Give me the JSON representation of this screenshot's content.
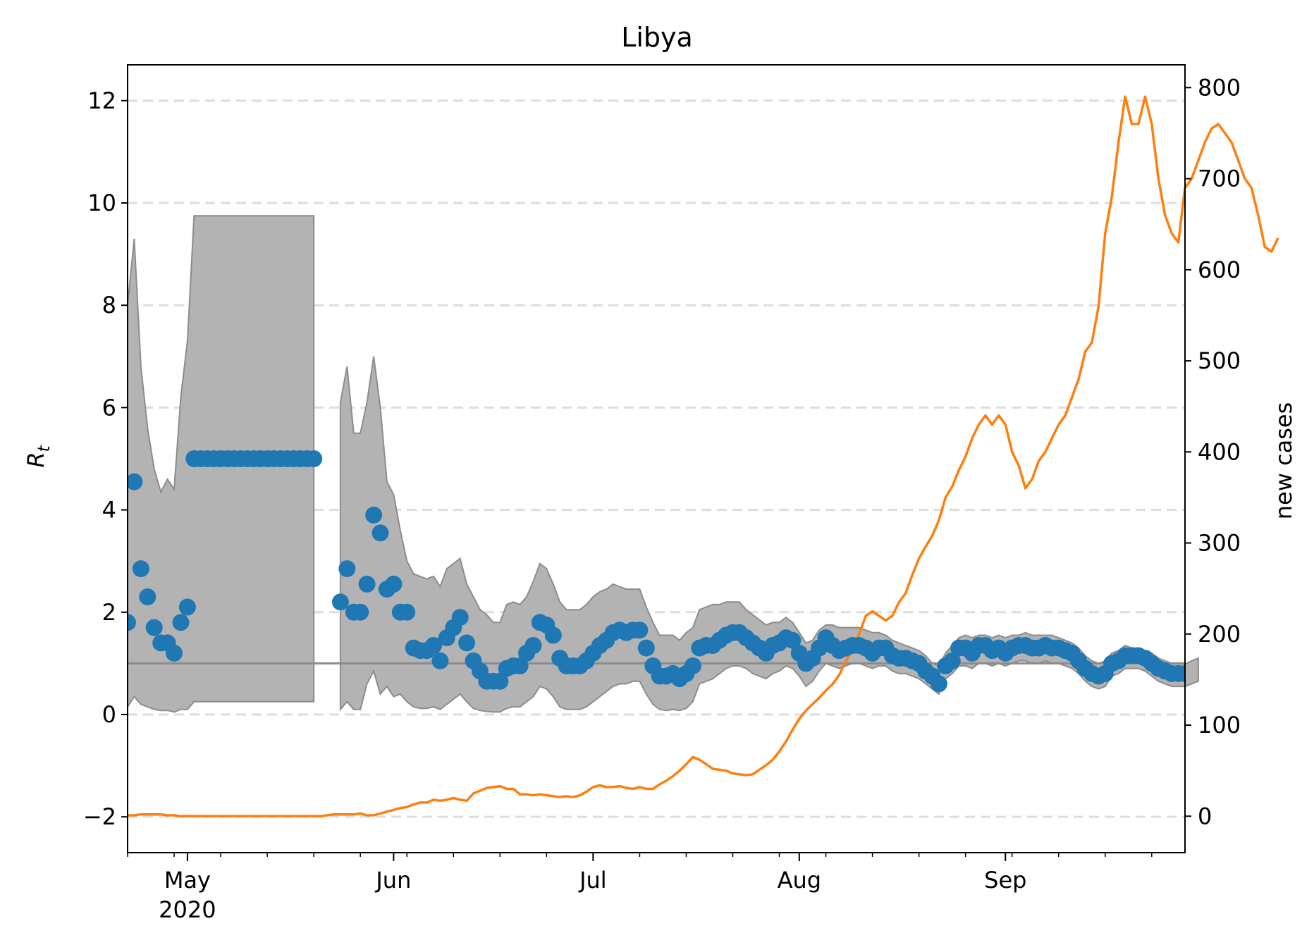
{
  "chart_data": {
    "type": "line",
    "title": "Libya",
    "ylabel": "R_t",
    "ylabel_main": "R",
    "ylabel_sub": "t",
    "y2label": "new cases",
    "ylim": [
      -2.7,
      12.7
    ],
    "y2lim": [
      -40,
      825
    ],
    "yticks": [
      -2,
      0,
      2,
      4,
      6,
      8,
      10,
      12
    ],
    "y2ticks": [
      0,
      100,
      200,
      300,
      400,
      500,
      600,
      700,
      800
    ],
    "grid": "horizontal dashed",
    "x_start_date": "2020-04-22",
    "x_end_date": "2020-09-28",
    "xticks": [
      {
        "day": 9,
        "label": "May",
        "sublabel": "2020"
      },
      {
        "day": 40,
        "label": "Jun",
        "sublabel": ""
      },
      {
        "day": 70,
        "label": "Jul",
        "sublabel": ""
      },
      {
        "day": 101,
        "label": "Aug",
        "sublabel": ""
      },
      {
        "day": 132,
        "label": "Sep",
        "sublabel": ""
      }
    ],
    "minor_ticks_every_days": 7,
    "reference_line": {
      "y": 1,
      "color": "#8c8c8c"
    },
    "colors": {
      "points": "#1f77b4",
      "cases": "#ff7f0e",
      "band": "#b3b3b3",
      "band_edge": "#8c8c8c",
      "grid": "#dddddd"
    },
    "series": [
      {
        "name": "R_t",
        "kind": "points",
        "segments": [
          {
            "start_day": 0,
            "values": [
              1.8,
              4.55,
              2.85,
              2.3,
              1.7,
              1.4,
              1.4,
              1.2,
              1.8,
              2.1,
              5,
              5,
              5,
              5,
              5,
              5,
              5,
              5,
              5,
              5,
              5,
              5,
              5,
              5,
              5,
              5,
              5,
              5,
              5
            ]
          },
          {
            "start_day": 32,
            "values": [
              2.2,
              2.85,
              2,
              2,
              2.55,
              3.9,
              3.55,
              2.45,
              2.55,
              2,
              2,
              1.3,
              1.25,
              1.25,
              1.35,
              1.05,
              1.5,
              1.7,
              1.9,
              1.4,
              1.05,
              0.85,
              0.65,
              0.65,
              0.65,
              0.9,
              0.95,
              0.95,
              1.2,
              1.35,
              1.8,
              1.75,
              1.55,
              1.1,
              0.95,
              0.95,
              0.95,
              1.05,
              1.2,
              1.35,
              1.45,
              1.6,
              1.65,
              1.6,
              1.65,
              1.65,
              1.3,
              0.95,
              0.75,
              0.75,
              0.8,
              0.7,
              0.8,
              0.95,
              1.3,
              1.35,
              1.35,
              1.45,
              1.55,
              1.6,
              1.6,
              1.5,
              1.4,
              1.3,
              1.2,
              1.35,
              1.4,
              1.5,
              1.45,
              1.2,
              1.0,
              1.1,
              1.3,
              1.5,
              1.35,
              1.25,
              1.3,
              1.35,
              1.35,
              1.3,
              1.2,
              1.3,
              1.3,
              1.15,
              1.1,
              1.1,
              1.05,
              1.0,
              0.85,
              0.75,
              0.6,
              0.95,
              1.05,
              1.3,
              1.3,
              1.2,
              1.35,
              1.35,
              1.25,
              1.3,
              1.2,
              1.3,
              1.35,
              1.35,
              1.3,
              1.3,
              1.35,
              1.3,
              1.3,
              1.25,
              1.2,
              1.05,
              0.9,
              0.8,
              0.75,
              0.8,
              1.0,
              1.05,
              1.15,
              1.15,
              1.15,
              1.1,
              1.0,
              0.9,
              0.85,
              0.8,
              0.8,
              0.8,
              0.85,
              0.95
            ]
          }
        ]
      },
      {
        "name": "R_t credible interval",
        "kind": "band",
        "segments": [
          {
            "start_day": 0,
            "upper": [
              8,
              9.3,
              6.8,
              5.6,
              4.8,
              4.35,
              4.6,
              4.4,
              6.2,
              7.3,
              9.75,
              9.75,
              9.75,
              9.75,
              9.75,
              9.75,
              9.75,
              9.75,
              9.75,
              9.75,
              9.75,
              9.75,
              9.75,
              9.75,
              9.75,
              9.75,
              9.75,
              9.75,
              9.75
            ],
            "lower": [
              0.15,
              0.35,
              0.2,
              0.15,
              0.1,
              0.08,
              0.08,
              0.05,
              0.1,
              0.1,
              0.25,
              0.25,
              0.25,
              0.25,
              0.25,
              0.25,
              0.25,
              0.25,
              0.25,
              0.25,
              0.25,
              0.25,
              0.25,
              0.25,
              0.25,
              0.25,
              0.25,
              0.25,
              0.25
            ]
          },
          {
            "start_day": 32,
            "upper": [
              6.1,
              6.8,
              5.5,
              5.5,
              6.1,
              7.0,
              6.0,
              4.55,
              4.3,
              3.6,
              3.0,
              2.75,
              2.7,
              2.65,
              2.7,
              2.5,
              2.85,
              2.95,
              3.05,
              2.55,
              2.3,
              2.05,
              1.95,
              1.8,
              1.8,
              2.15,
              2.2,
              2.15,
              2.3,
              2.6,
              2.95,
              2.85,
              2.55,
              2.2,
              2.05,
              2.05,
              2.05,
              2.15,
              2.3,
              2.4,
              2.45,
              2.55,
              2.5,
              2.45,
              2.45,
              2.45,
              2.1,
              1.8,
              1.55,
              1.55,
              1.55,
              1.45,
              1.6,
              1.7,
              2.05,
              2.1,
              2.15,
              2.15,
              2.2,
              2.2,
              2.2,
              2.05,
              1.95,
              1.85,
              1.75,
              1.8,
              1.8,
              1.9,
              1.8,
              1.6,
              1.4,
              1.45,
              1.65,
              1.75,
              1.75,
              1.7,
              1.7,
              1.7,
              1.7,
              1.65,
              1.6,
              1.6,
              1.55,
              1.45,
              1.4,
              1.35,
              1.3,
              1.25,
              1.15,
              1.0,
              0.95,
              1.2,
              1.35,
              1.5,
              1.55,
              1.5,
              1.55,
              1.55,
              1.5,
              1.55,
              1.5,
              1.55,
              1.55,
              1.6,
              1.55,
              1.55,
              1.55,
              1.55,
              1.5,
              1.45,
              1.4,
              1.3,
              1.15,
              1.05,
              1.0,
              1.05,
              1.2,
              1.25,
              1.35,
              1.3,
              1.3,
              1.25,
              1.2,
              1.1,
              1.05,
              1.0,
              1.0,
              0.98,
              1.05,
              1.1
            ],
            "lower": [
              0.1,
              0.25,
              0.1,
              0.1,
              0.6,
              0.85,
              0.4,
              0.55,
              0.35,
              0.4,
              0.25,
              0.15,
              0.12,
              0.12,
              0.15,
              0.1,
              0.2,
              0.3,
              0.4,
              0.25,
              0.12,
              0.08,
              0.06,
              0.05,
              0.05,
              0.12,
              0.15,
              0.15,
              0.25,
              0.35,
              0.55,
              0.5,
              0.35,
              0.15,
              0.1,
              0.1,
              0.1,
              0.15,
              0.25,
              0.35,
              0.45,
              0.55,
              0.6,
              0.6,
              0.65,
              0.65,
              0.4,
              0.2,
              0.1,
              0.08,
              0.1,
              0.08,
              0.12,
              0.25,
              0.6,
              0.65,
              0.7,
              0.8,
              0.9,
              0.95,
              0.95,
              0.9,
              0.8,
              0.75,
              0.7,
              0.8,
              0.85,
              0.95,
              0.9,
              0.75,
              0.55,
              0.65,
              0.85,
              1.0,
              0.95,
              0.9,
              0.95,
              1.0,
              1.0,
              0.95,
              0.9,
              0.95,
              0.95,
              0.85,
              0.8,
              0.8,
              0.75,
              0.7,
              0.6,
              0.5,
              0.4,
              0.7,
              0.8,
              0.95,
              0.95,
              0.9,
              1.0,
              1.0,
              0.95,
              1.0,
              0.95,
              1.0,
              1.05,
              1.05,
              1.0,
              1.0,
              1.05,
              1.0,
              1.0,
              0.95,
              0.9,
              0.8,
              0.65,
              0.55,
              0.5,
              0.55,
              0.75,
              0.8,
              0.9,
              0.9,
              0.9,
              0.85,
              0.75,
              0.65,
              0.6,
              0.55,
              0.55,
              0.55,
              0.6,
              0.65
            ]
          }
        ]
      },
      {
        "name": "new cases",
        "kind": "line",
        "axis": "right",
        "start_day": 0,
        "values": [
          1,
          1,
          2,
          2,
          2,
          2,
          1,
          1,
          0,
          0,
          0,
          0,
          0,
          0,
          0,
          0,
          0,
          0,
          0,
          0,
          0,
          0,
          0,
          0,
          0,
          0,
          0,
          0,
          0,
          0,
          1,
          2,
          2,
          2,
          2,
          3,
          1,
          1,
          3,
          5,
          7,
          9,
          10,
          13,
          15,
          15,
          18,
          17,
          18,
          20,
          18,
          17,
          25,
          28,
          31,
          32,
          33,
          30,
          30,
          24,
          24,
          23,
          24,
          23,
          22,
          21,
          22,
          21,
          23,
          27,
          32,
          34,
          32,
          32,
          33,
          31,
          30,
          32,
          30,
          30,
          35,
          39,
          44,
          50,
          57,
          65,
          62,
          57,
          52,
          51,
          50,
          47,
          46,
          45,
          46,
          51,
          56,
          62,
          71,
          82,
          95,
          107,
          116,
          123,
          130,
          138,
          145,
          155,
          170,
          185,
          200,
          220,
          225,
          220,
          215,
          220,
          235,
          245,
          265,
          283,
          296,
          308,
          325,
          350,
          362,
          380,
          395,
          415,
          430,
          440,
          430,
          440,
          430,
          400,
          385,
          360,
          370,
          390,
          400,
          415,
          430,
          440,
          460,
          480,
          510,
          520,
          560,
          640,
          680,
          740,
          790,
          760,
          760,
          790,
          760,
          700,
          660,
          640,
          630,
          690,
          700,
          720,
          740,
          755,
          760,
          750,
          740,
          720,
          700,
          690,
          660,
          625,
          620,
          635
        ]
      }
    ]
  }
}
